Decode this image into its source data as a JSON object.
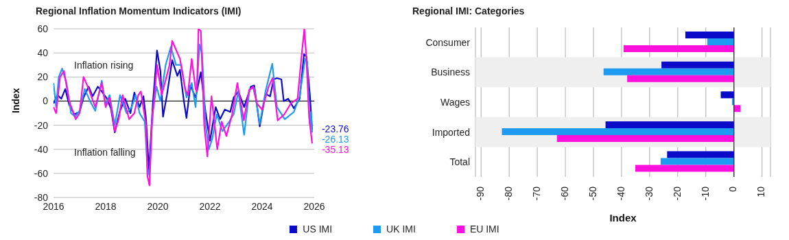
{
  "chart_data": [
    {
      "type": "line",
      "title": "Regional Inflation Momentum Indicators (IMI)",
      "ylabel": "Index",
      "annotations": [
        "Inflation rising",
        "Inflation falling"
      ],
      "xlim": [
        2016,
        2026
      ],
      "xticks": [
        2016,
        2018,
        2020,
        2022,
        2024,
        2026
      ],
      "ylim": [
        -80,
        60
      ],
      "yticks": [
        -80,
        -60,
        -40,
        -20,
        0,
        20,
        40,
        60
      ],
      "grid": "y",
      "legend": "bottom",
      "ref_lines": [
        {
          "axis": "y",
          "value": 0,
          "color": "#222222"
        }
      ],
      "series": [
        {
          "name": "US IMI",
          "color": "#0a0ac8",
          "x": [
            2016.0,
            2016.15,
            2016.3,
            2016.45,
            2016.6,
            2016.8,
            2017.0,
            2017.15,
            2017.35,
            2017.5,
            2017.7,
            2017.85,
            2018.05,
            2018.2,
            2018.35,
            2018.55,
            2018.75,
            2018.95,
            2019.1,
            2019.3,
            2019.45,
            2019.55,
            2019.66,
            2019.8,
            2019.97,
            2020.1,
            2020.2,
            2020.35,
            2020.55,
            2020.75,
            2020.85,
            2021.0,
            2021.1,
            2021.25,
            2021.45,
            2021.65,
            2021.83,
            2022.0,
            2022.22,
            2022.39,
            2022.57,
            2022.78,
            2022.91,
            2023.09,
            2023.31,
            2023.57,
            2023.7,
            2023.91,
            2024.13,
            2024.31,
            2024.44,
            2024.57,
            2024.74,
            2024.83,
            2025.0,
            2025.22,
            2025.44,
            2025.61,
            2025.7,
            2025.83,
            2025.92
          ],
          "values": [
            -2,
            5,
            2,
            10,
            -3,
            -11,
            -9,
            3,
            12,
            4,
            12,
            8,
            2,
            -6,
            -26,
            -8,
            2,
            -10,
            7,
            -5,
            4,
            -15,
            -58,
            -5,
            42,
            25,
            -13,
            5,
            34,
            21,
            26,
            0,
            -14,
            13,
            3,
            24,
            -9,
            -33,
            -5,
            -15,
            -7,
            -9,
            3,
            8,
            -5,
            12,
            13,
            -21,
            6,
            4,
            18,
            19,
            18,
            0,
            2,
            -6,
            2,
            39,
            37,
            6,
            -23.76
          ],
          "value_labels": [
            null,
            null,
            null,
            null,
            null,
            null,
            null,
            null,
            null,
            null,
            null,
            null,
            null,
            null,
            null,
            null,
            null,
            null,
            null,
            null,
            null,
            null,
            null,
            null,
            null,
            null,
            null,
            null,
            null,
            null,
            null,
            null,
            null,
            null,
            null,
            null,
            null,
            null,
            null,
            null,
            null,
            null,
            null,
            null,
            null,
            null,
            null,
            null,
            null,
            null,
            null,
            null,
            null,
            null,
            null,
            null,
            null,
            null,
            null,
            null,
            "-23.76"
          ]
        },
        {
          "name": "UK IMI",
          "color": "#1e9bf0",
          "x": [
            2016.0,
            2016.1,
            2016.2,
            2016.33,
            2016.5,
            2016.67,
            2016.83,
            2017.0,
            2017.2,
            2017.4,
            2017.6,
            2017.85,
            2018.0,
            2018.15,
            2018.35,
            2018.55,
            2018.8,
            2019.0,
            2019.15,
            2019.3,
            2019.5,
            2019.6,
            2019.68,
            2019.8,
            2019.95,
            2020.1,
            2020.3,
            2020.5,
            2020.7,
            2020.9,
            2021.1,
            2021.3,
            2021.45,
            2021.6,
            2021.7,
            2021.83,
            2021.96,
            2022.09,
            2022.26,
            2022.48,
            2022.74,
            2022.91,
            2023.09,
            2023.31,
            2023.52,
            2023.7,
            2023.91,
            2024.13,
            2024.39,
            2024.57,
            2024.87,
            2025.22,
            2025.44,
            2025.65,
            2025.73,
            2025.83,
            2025.88,
            2025.92
          ],
          "values": [
            15,
            -5,
            20,
            27,
            15,
            -10,
            -13,
            -8,
            10,
            0,
            -8,
            17,
            -3,
            5,
            -20,
            5,
            -10,
            -5,
            5,
            -10,
            -17,
            -55,
            -62,
            -10,
            12,
            0,
            30,
            45,
            30,
            30,
            3,
            15,
            -5,
            47,
            39,
            -19,
            -40,
            -31,
            -11,
            -25,
            -17,
            -11,
            8,
            -28,
            10,
            11,
            -19,
            8,
            31,
            -5,
            -15,
            -9,
            4,
            35,
            33,
            -19,
            -9,
            -26.13
          ],
          "value_labels": [
            null,
            null,
            null,
            null,
            null,
            null,
            null,
            null,
            null,
            null,
            null,
            null,
            null,
            null,
            null,
            null,
            null,
            null,
            null,
            null,
            null,
            null,
            null,
            null,
            null,
            null,
            null,
            null,
            null,
            null,
            null,
            null,
            null,
            null,
            null,
            null,
            null,
            null,
            null,
            null,
            null,
            null,
            null,
            null,
            null,
            null,
            null,
            null,
            null,
            null,
            null,
            null,
            null,
            null,
            null,
            null,
            null,
            "-26.13"
          ]
        },
        {
          "name": "EU IMI",
          "color": "#ff10dc",
          "x": [
            2016.0,
            2016.1,
            2016.25,
            2016.4,
            2016.6,
            2016.85,
            2017.0,
            2017.15,
            2017.35,
            2017.6,
            2017.85,
            2018.0,
            2018.15,
            2018.35,
            2018.5,
            2018.65,
            2018.9,
            2019.1,
            2019.25,
            2019.35,
            2019.55,
            2019.6,
            2019.68,
            2019.77,
            2019.97,
            2020.15,
            2020.45,
            2020.55,
            2020.85,
            2021.05,
            2021.15,
            2021.3,
            2021.45,
            2021.5,
            2021.56,
            2021.65,
            2021.78,
            2021.9,
            2022.06,
            2022.28,
            2022.45,
            2022.63,
            2022.85,
            2023.05,
            2023.3,
            2023.5,
            2023.65,
            2023.8,
            2024.0,
            2024.25,
            2024.4,
            2024.6,
            2024.85,
            2025.1,
            2025.36,
            2025.53,
            2025.62,
            2025.7,
            2025.8,
            2025.92
          ],
          "values": [
            -5,
            -10,
            20,
            25,
            0,
            -15,
            -10,
            20,
            10,
            -5,
            15,
            -5,
            3,
            -25,
            -15,
            5,
            -15,
            -10,
            5,
            8,
            -20,
            -62,
            -70,
            -20,
            30,
            5,
            30,
            50,
            35,
            10,
            5,
            35,
            10,
            8,
            60,
            58,
            -20,
            -46,
            4,
            -40,
            -17,
            -29,
            -11,
            15,
            -16,
            9,
            12,
            -2,
            -7,
            12,
            19,
            -16,
            -11,
            -2,
            2,
            41,
            60,
            35,
            -13,
            -35.13
          ],
          "value_labels": [
            null,
            null,
            null,
            null,
            null,
            null,
            null,
            null,
            null,
            null,
            null,
            null,
            null,
            null,
            null,
            null,
            null,
            null,
            null,
            null,
            null,
            null,
            null,
            null,
            null,
            null,
            null,
            null,
            null,
            null,
            null,
            null,
            null,
            null,
            null,
            null,
            null,
            null,
            null,
            null,
            null,
            null,
            null,
            null,
            null,
            null,
            null,
            null,
            null,
            null,
            null,
            null,
            null,
            null,
            null,
            null,
            null,
            null,
            null,
            "-35.13"
          ]
        }
      ]
    },
    {
      "type": "bar",
      "orientation": "horizontal",
      "title": "Regional IMI: Categories",
      "xlabel": "Index",
      "categories": [
        "Consumer",
        "Business",
        "Wages",
        "Imported",
        "Total"
      ],
      "xlim": [
        -92,
        13
      ],
      "xticks": [
        -90,
        -80,
        -70,
        -60,
        -50,
        -40,
        -30,
        -20,
        -10,
        0,
        10
      ],
      "grid": "x",
      "ref_lines": [
        {
          "axis": "x",
          "value": 0,
          "color": "#222222"
        }
      ],
      "bands": [
        {
          "axis": "y",
          "from": "Business",
          "to": "Business",
          "color": "#efefef"
        },
        {
          "axis": "y",
          "from": "Imported",
          "to": "Imported",
          "color": "#efefef"
        }
      ],
      "series": [
        {
          "color": "#0a0ac8",
          "values": [
            -17.3,
            -25.8,
            -4.7,
            -45.7,
            -23.8
          ]
        },
        {
          "color": "#1e9bf0",
          "values": [
            -9.5,
            -46.4,
            -0.7,
            -82.6,
            -26.1
          ]
        },
        {
          "color": "#ff10dc",
          "values": [
            -39.3,
            -38.0,
            2.3,
            -63.0,
            -35.1
          ]
        }
      ]
    }
  ]
}
